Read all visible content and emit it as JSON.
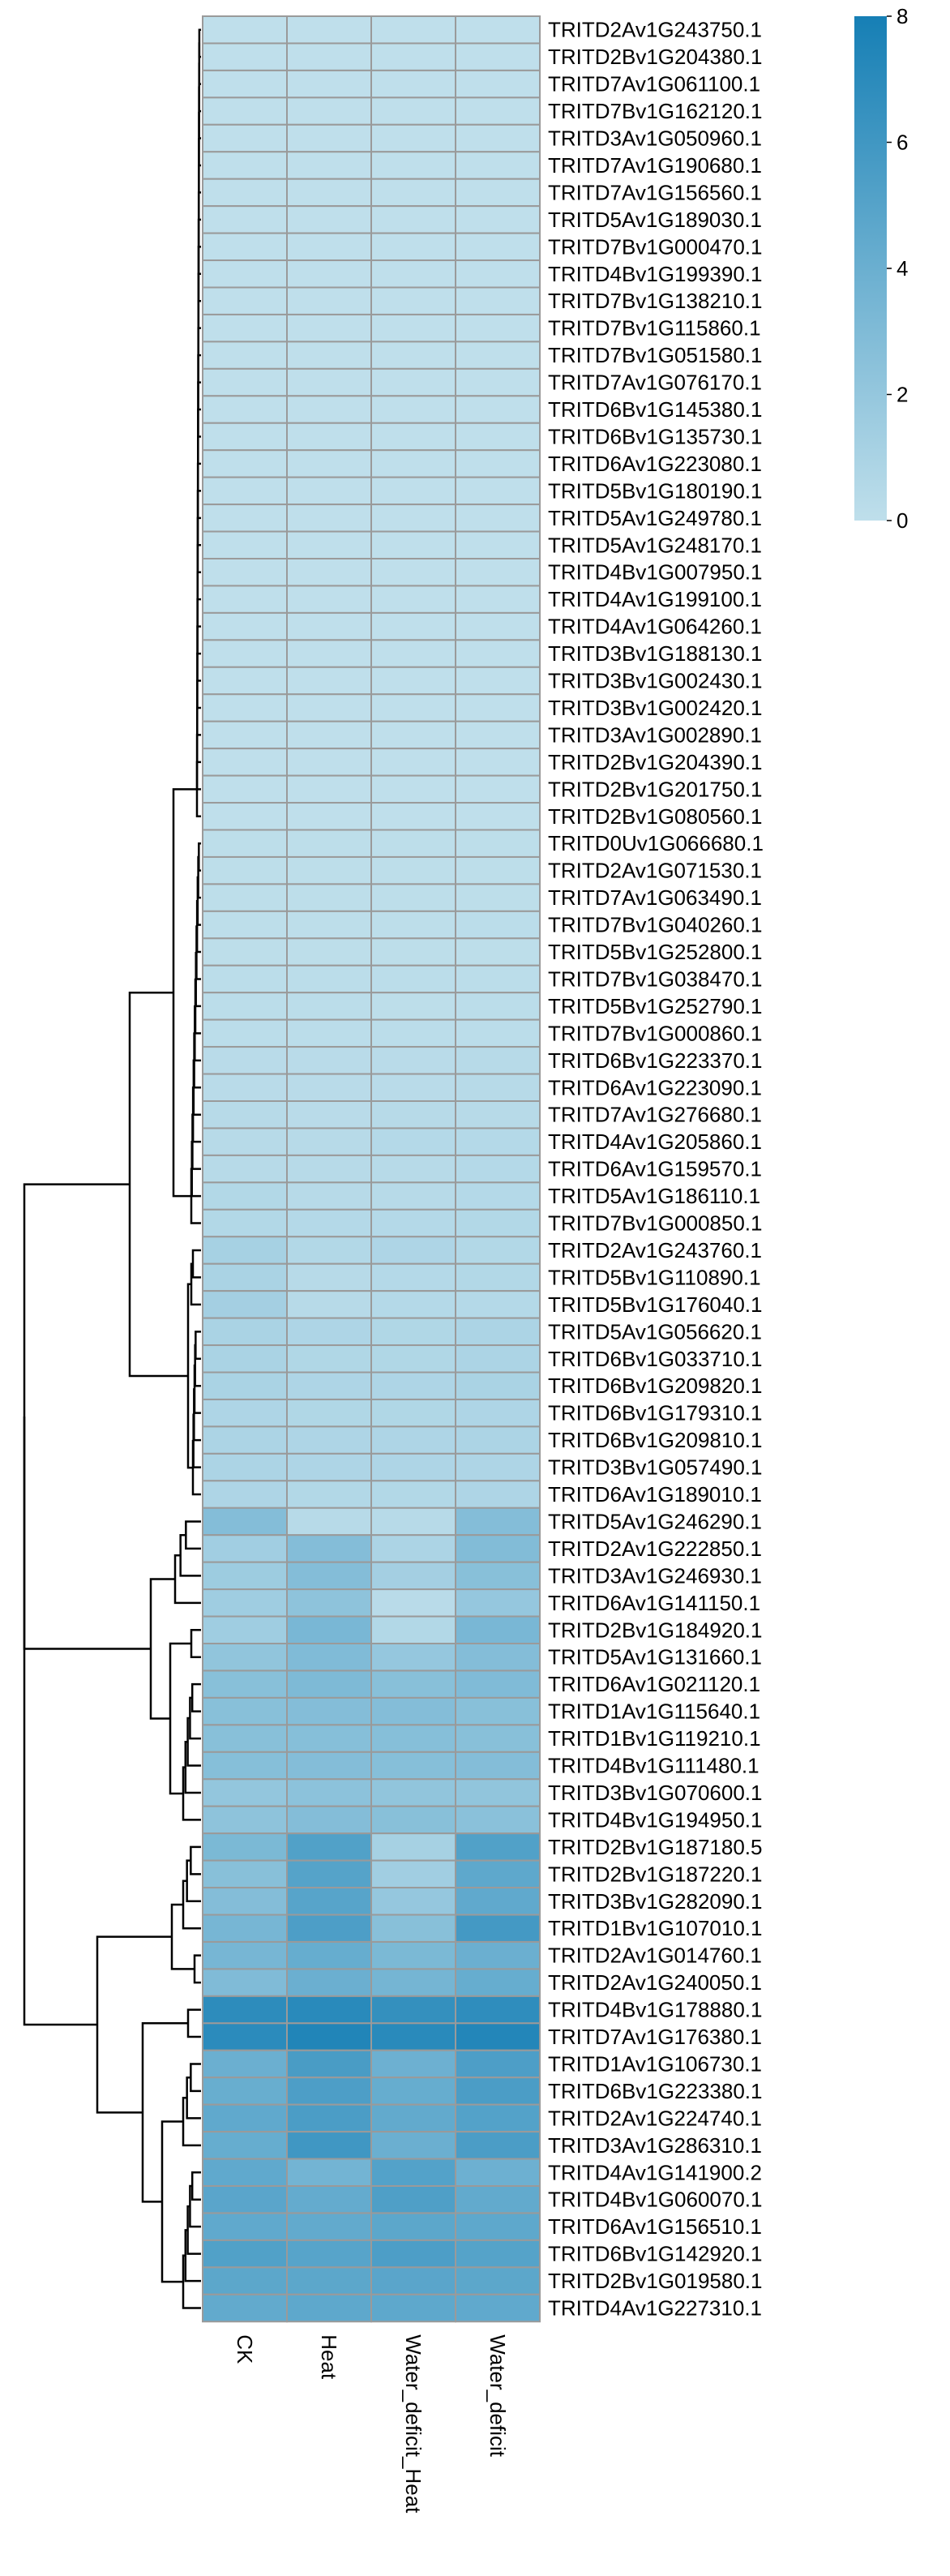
{
  "chart_data": {
    "type": "heatmap",
    "columns": [
      "CK",
      "Heat",
      "Water_deficit_Heat",
      "Water_deficit"
    ],
    "rows": [
      "TRITD2Av1G243750.1",
      "TRITD2Bv1G204380.1",
      "TRITD7Av1G061100.1",
      "TRITD7Bv1G162120.1",
      "TRITD3Av1G050960.1",
      "TRITD7Av1G190680.1",
      "TRITD7Av1G156560.1",
      "TRITD5Av1G189030.1",
      "TRITD7Bv1G000470.1",
      "TRITD4Bv1G199390.1",
      "TRITD7Bv1G138210.1",
      "TRITD7Bv1G115860.1",
      "TRITD7Bv1G051580.1",
      "TRITD7Av1G076170.1",
      "TRITD6Bv1G145380.1",
      "TRITD6Bv1G135730.1",
      "TRITD6Av1G223080.1",
      "TRITD5Bv1G180190.1",
      "TRITD5Av1G249780.1",
      "TRITD5Av1G248170.1",
      "TRITD4Bv1G007950.1",
      "TRITD4Av1G199100.1",
      "TRITD4Av1G064260.1",
      "TRITD3Bv1G188130.1",
      "TRITD3Bv1G002430.1",
      "TRITD3Bv1G002420.1",
      "TRITD3Av1G002890.1",
      "TRITD2Bv1G204390.1",
      "TRITD2Bv1G201750.1",
      "TRITD2Bv1G080560.1",
      "TRITD0Uv1G066680.1",
      "TRITD2Av1G071530.1",
      "TRITD7Av1G063490.1",
      "TRITD7Bv1G040260.1",
      "TRITD5Bv1G252800.1",
      "TRITD7Bv1G038470.1",
      "TRITD5Bv1G252790.1",
      "TRITD7Bv1G000860.1",
      "TRITD6Bv1G223370.1",
      "TRITD6Av1G223090.1",
      "TRITD7Av1G276680.1",
      "TRITD4Av1G205860.1",
      "TRITD6Av1G159570.1",
      "TRITD5Av1G186110.1",
      "TRITD7Bv1G000850.1",
      "TRITD2Av1G243760.1",
      "TRITD5Bv1G110890.1",
      "TRITD5Bv1G176040.1",
      "TRITD5Av1G056620.1",
      "TRITD6Bv1G033710.1",
      "TRITD6Bv1G209820.1",
      "TRITD6Bv1G179310.1",
      "TRITD6Bv1G209810.1",
      "TRITD3Bv1G057490.1",
      "TRITD6Av1G189010.1",
      "TRITD5Av1G246290.1",
      "TRITD2Av1G222850.1",
      "TRITD3Av1G246930.1",
      "TRITD6Av1G141150.1",
      "TRITD2Bv1G184920.1",
      "TRITD5Av1G131660.1",
      "TRITD6Av1G021120.1",
      "TRITD1Av1G115640.1",
      "TRITD1Bv1G119210.1",
      "TRITD4Bv1G111480.1",
      "TRITD3Bv1G070600.1",
      "TRITD4Bv1G194950.1",
      "TRITD2Bv1G187180.5",
      "TRITD2Bv1G187220.1",
      "TRITD3Bv1G282090.1",
      "TRITD1Bv1G107010.1",
      "TRITD2Av1G014760.1",
      "TRITD2Av1G240050.1",
      "TRITD4Bv1G178880.1",
      "TRITD7Av1G176380.1",
      "TRITD1Av1G106730.1",
      "TRITD6Bv1G223380.1",
      "TRITD2Av1G224740.1",
      "TRITD3Av1G286310.1",
      "TRITD4Av1G141900.2",
      "TRITD4Bv1G060070.1",
      "TRITD6Av1G156510.1",
      "TRITD6Bv1G142920.1",
      "TRITD2Bv1G019580.1",
      "TRITD4Av1G227310.1"
    ],
    "values": [
      [
        0.0,
        0.0,
        0.0,
        0.0
      ],
      [
        0.0,
        0.0,
        0.0,
        0.0
      ],
      [
        0.0,
        0.0,
        0.0,
        0.0
      ],
      [
        0.0,
        0.0,
        0.0,
        0.0
      ],
      [
        0.0,
        0.0,
        0.0,
        0.0
      ],
      [
        0.0,
        0.0,
        0.0,
        0.0
      ],
      [
        0.0,
        0.0,
        0.0,
        0.0
      ],
      [
        0.0,
        0.0,
        0.0,
        0.0
      ],
      [
        0.0,
        0.0,
        0.0,
        0.0
      ],
      [
        0.0,
        0.0,
        0.0,
        0.0
      ],
      [
        0.0,
        0.0,
        0.0,
        0.0
      ],
      [
        0.0,
        0.0,
        0.0,
        0.0
      ],
      [
        0.0,
        0.0,
        0.0,
        0.0
      ],
      [
        0.0,
        0.0,
        0.0,
        0.0
      ],
      [
        0.0,
        0.0,
        0.0,
        0.0
      ],
      [
        0.0,
        0.0,
        0.0,
        0.0
      ],
      [
        0.0,
        0.0,
        0.0,
        0.0
      ],
      [
        0.0,
        0.0,
        0.0,
        0.0
      ],
      [
        0.0,
        0.0,
        0.0,
        0.0
      ],
      [
        0.0,
        0.0,
        0.0,
        0.0
      ],
      [
        0.0,
        0.0,
        0.0,
        0.0
      ],
      [
        0.0,
        0.0,
        0.0,
        0.0
      ],
      [
        0.0,
        0.0,
        0.0,
        0.0
      ],
      [
        0.0,
        0.0,
        0.0,
        0.0
      ],
      [
        0.0,
        0.0,
        0.0,
        0.0
      ],
      [
        0.0,
        0.0,
        0.0,
        0.0
      ],
      [
        0.0,
        0.0,
        0.0,
        0.0
      ],
      [
        0.0,
        0.0,
        0.0,
        0.0
      ],
      [
        0.0,
        0.0,
        0.0,
        0.0
      ],
      [
        0.0,
        0.0,
        0.0,
        0.0
      ],
      [
        0.1,
        0.1,
        0.1,
        0.1
      ],
      [
        0.1,
        0.1,
        0.1,
        0.1
      ],
      [
        0.1,
        0.1,
        0.1,
        0.1
      ],
      [
        0.1,
        0.1,
        0.1,
        0.2
      ],
      [
        0.1,
        0.1,
        0.1,
        0.1
      ],
      [
        0.2,
        0.2,
        0.2,
        0.2
      ],
      [
        0.2,
        0.2,
        0.1,
        0.2
      ],
      [
        0.2,
        0.2,
        0.2,
        0.2
      ],
      [
        0.3,
        0.3,
        0.3,
        0.4
      ],
      [
        0.3,
        0.3,
        0.3,
        0.4
      ],
      [
        0.4,
        0.3,
        0.4,
        0.4
      ],
      [
        0.4,
        0.4,
        0.5,
        0.5
      ],
      [
        0.4,
        0.4,
        0.4,
        0.5
      ],
      [
        0.6,
        0.4,
        0.4,
        0.5
      ],
      [
        0.6,
        0.5,
        0.5,
        0.6
      ],
      [
        1.2,
        0.6,
        0.8,
        0.6
      ],
      [
        1.0,
        0.4,
        0.5,
        0.6
      ],
      [
        1.3,
        0.4,
        0.5,
        0.5
      ],
      [
        1.0,
        0.8,
        0.7,
        0.9
      ],
      [
        1.0,
        0.7,
        0.7,
        0.9
      ],
      [
        1.0,
        0.8,
        0.8,
        1.0
      ],
      [
        0.8,
        0.7,
        0.7,
        0.8
      ],
      [
        0.9,
        0.8,
        0.8,
        0.9
      ],
      [
        0.9,
        0.8,
        0.8,
        0.8
      ],
      [
        0.8,
        0.6,
        0.6,
        0.8
      ],
      [
        2.8,
        0.4,
        0.4,
        2.8
      ],
      [
        1.4,
        2.8,
        0.9,
        2.9
      ],
      [
        1.6,
        2.8,
        1.3,
        2.6
      ],
      [
        1.5,
        2.3,
        0.3,
        2.0
      ],
      [
        1.5,
        3.3,
        0.6,
        3.3
      ],
      [
        2.2,
        3.0,
        2.0,
        2.8
      ],
      [
        2.6,
        3.1,
        2.6,
        3.0
      ],
      [
        2.6,
        2.8,
        2.8,
        2.6
      ],
      [
        2.6,
        2.7,
        2.7,
        2.6
      ],
      [
        2.7,
        2.8,
        2.7,
        2.8
      ],
      [
        2.1,
        2.4,
        2.2,
        2.2
      ],
      [
        2.3,
        2.8,
        2.6,
        2.5
      ],
      [
        3.2,
        5.2,
        1.2,
        5.2
      ],
      [
        2.6,
        5.0,
        1.4,
        4.6
      ],
      [
        2.8,
        4.9,
        2.0,
        4.5
      ],
      [
        3.4,
        5.4,
        2.6,
        5.8
      ],
      [
        3.4,
        4.2,
        3.2,
        4.0
      ],
      [
        3.0,
        4.0,
        3.5,
        4.2
      ],
      [
        6.9,
        7.1,
        6.6,
        6.8
      ],
      [
        7.0,
        7.5,
        7.1,
        7.4
      ],
      [
        4.0,
        5.6,
        3.9,
        5.4
      ],
      [
        4.1,
        5.4,
        4.2,
        5.5
      ],
      [
        4.5,
        5.5,
        4.4,
        5.1
      ],
      [
        4.2,
        6.0,
        4.0,
        5.5
      ],
      [
        4.5,
        3.6,
        5.1,
        3.9
      ],
      [
        4.8,
        4.3,
        5.3,
        4.4
      ],
      [
        4.5,
        4.4,
        4.7,
        4.6
      ],
      [
        5.2,
        4.9,
        5.4,
        5.0
      ],
      [
        4.7,
        4.7,
        4.8,
        4.7
      ],
      [
        4.4,
        4.6,
        4.6,
        4.5
      ]
    ],
    "color_scale": {
      "min": 0,
      "max": 8,
      "low_color": "#bfdfeb",
      "high_color": "#167fb5"
    },
    "legend": {
      "ticks": [
        0,
        2,
        4,
        6,
        8
      ],
      "position": "top-right"
    },
    "dendrogram": "rows"
  }
}
